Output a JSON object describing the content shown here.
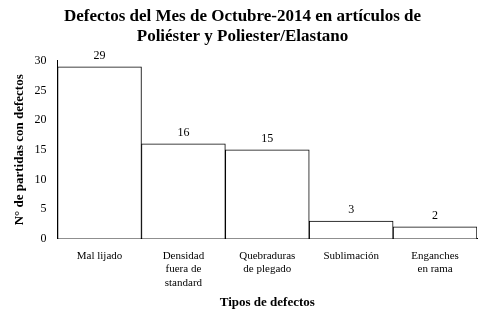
{
  "chart_data": {
    "type": "bar",
    "title": "Defectos del Mes de Octubre-2014 en artículos de Poliéster y Poliester/Elastano",
    "x_label": "Tipos de defectos",
    "y_label": "N° de partidas con defectos",
    "categories": [
      "Mal lijado",
      "Densidad fuera de standard",
      "Quebraduras de plegado",
      "Sublimación",
      "Enganches en rama"
    ],
    "values": [
      29,
      16,
      15,
      3,
      2
    ],
    "color": "#ffffff",
    "ylim": [
      0,
      30
    ],
    "yticks": [
      0,
      5,
      10,
      15,
      20,
      25,
      30
    ],
    "grid": false,
    "data_labels": true
  }
}
